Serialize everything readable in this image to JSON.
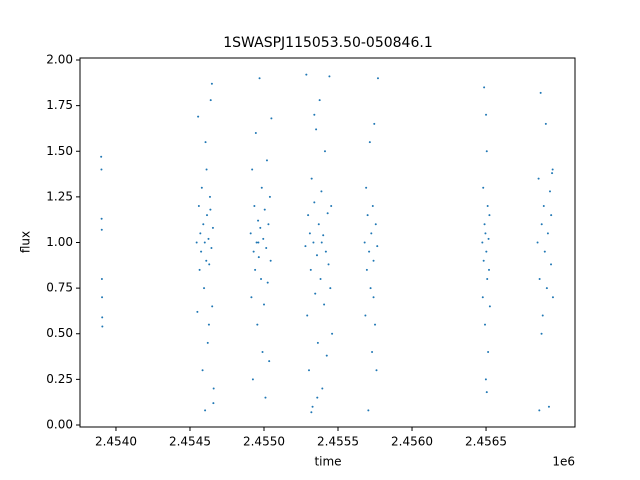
{
  "chart_data": {
    "type": "scatter",
    "title": "1SWASPJ115053.50-050846.1",
    "x_label": "time",
    "y_label": "flux",
    "x_offset_label": "1e6",
    "color": "#1f77b4",
    "xlim": [
      2453757,
      2457101
    ],
    "ylim": [
      -0.011,
      2.011
    ],
    "xticks": [
      {
        "value": 2454000,
        "label": "2.4540"
      },
      {
        "value": 2454500,
        "label": "2.4545"
      },
      {
        "value": 2455000,
        "label": "2.4550"
      },
      {
        "value": 2455500,
        "label": "2.4555"
      },
      {
        "value": 2456000,
        "label": "2.4560"
      },
      {
        "value": 2456500,
        "label": "2.4565"
      }
    ],
    "yticks": [
      {
        "value": 0,
        "label": "0.00"
      },
      {
        "value": 0.25,
        "label": "0.25"
      },
      {
        "value": 0.5,
        "label": "0.50"
      },
      {
        "value": 0.75,
        "label": "0.75"
      },
      {
        "value": 1,
        "label": "1.00"
      },
      {
        "value": 1.25,
        "label": "1.25"
      },
      {
        "value": 1.5,
        "label": "1.50"
      },
      {
        "value": 1.75,
        "label": "1.75"
      },
      {
        "value": 2,
        "label": "2.00"
      }
    ],
    "x": [
      2453900,
      2453902,
      2453903,
      2453904,
      2453905,
      2453906,
      2453907,
      2453908,
      2454545,
      2454550,
      2454555,
      2454560,
      2454565,
      2454570,
      2454575,
      2454580,
      2454585,
      2454590,
      2454595,
      2454600,
      2454605,
      2454610,
      2454615,
      2454620,
      2454625,
      2454630,
      2454635,
      2454640,
      2454645,
      2454650,
      2454655,
      2454660,
      2454648,
      2454602,
      2454658,
      2454612,
      2454628,
      2454638,
      2454910,
      2454915,
      2454920,
      2454925,
      2454930,
      2454935,
      2454940,
      2454945,
      2454950,
      2454955,
      2454960,
      2454965,
      2454970,
      2454975,
      2454980,
      2454985,
      2454990,
      2454995,
      2455000,
      2455005,
      2455010,
      2455015,
      2455020,
      2455025,
      2455030,
      2455035,
      2455040,
      2455045,
      2455050,
      2454962,
      2455280,
      2455286,
      2455292,
      2455298,
      2455304,
      2455310,
      2455316,
      2455322,
      2455328,
      2455334,
      2455340,
      2455346,
      2455352,
      2455358,
      2455364,
      2455370,
      2455376,
      2455382,
      2455388,
      2455394,
      2455400,
      2455406,
      2455412,
      2455418,
      2455424,
      2455430,
      2455436,
      2455442,
      2455448,
      2455454,
      2455460,
      2455320,
      2455340,
      2455360,
      2455390,
      2455680,
      2455685,
      2455690,
      2455695,
      2455700,
      2455705,
      2455710,
      2455715,
      2455720,
      2455725,
      2455730,
      2455735,
      2455740,
      2455745,
      2455750,
      2455755,
      2455760,
      2455765,
      2455770,
      2455740,
      2456475,
      2456478,
      2456481,
      2456484,
      2456487,
      2456490,
      2456493,
      2456496,
      2456499,
      2456502,
      2456505,
      2456508,
      2456511,
      2456514,
      2456517,
      2456520,
      2456523,
      2456526,
      2456500,
      2456505,
      2456848,
      2456855,
      2456862,
      2456869,
      2456876,
      2456883,
      2456890,
      2456897,
      2456904,
      2456911,
      2456918,
      2456925,
      2456932,
      2456939,
      2456946,
      2456952,
      2456860,
      2456875,
      2456940,
      2456950
    ],
    "values": [
      1.47,
      1.4,
      1.13,
      1.07,
      0.8,
      0.7,
      0.59,
      0.54,
      1.0,
      0.62,
      1.69,
      1.2,
      0.85,
      1.05,
      0.95,
      1.3,
      0.3,
      1.1,
      0.75,
      1.0,
      1.55,
      0.9,
      1.15,
      0.45,
      1.02,
      0.88,
      1.25,
      1.78,
      0.97,
      0.65,
      1.08,
      0.2,
      1.87,
      0.08,
      0.12,
      1.4,
      0.55,
      1.18,
      1.05,
      0.7,
      1.4,
      0.25,
      0.95,
      1.2,
      0.85,
      1.6,
      1.0,
      0.55,
      1.12,
      0.92,
      1.9,
      1.08,
      0.8,
      1.3,
      0.4,
      1.02,
      0.66,
      1.18,
      0.15,
      0.97,
      1.45,
      0.78,
      1.1,
      0.35,
      1.25,
      0.9,
      1.68,
      1.0,
      0.98,
      1.92,
      0.6,
      1.15,
      0.3,
      1.05,
      0.85,
      1.35,
      0.1,
      1.0,
      1.22,
      0.72,
      1.62,
      0.93,
      0.45,
      1.1,
      1.78,
      0.8,
      1.28,
      0.2,
      1.04,
      0.66,
      1.5,
      0.95,
      0.38,
      1.16,
      0.88,
      1.91,
      0.75,
      1.2,
      0.5,
      0.07,
      1.7,
      0.15,
      1.0,
      1.0,
      0.6,
      1.3,
      0.85,
      1.15,
      0.08,
      0.95,
      1.55,
      0.75,
      1.05,
      0.4,
      1.2,
      0.9,
      1.65,
      0.55,
      1.1,
      0.3,
      0.98,
      1.9,
      0.7,
      1.0,
      0.7,
      1.3,
      0.9,
      1.85,
      1.1,
      0.55,
      1.05,
      0.25,
      0.95,
      1.5,
      0.8,
      1.2,
      0.4,
      1.02,
      0.85,
      1.15,
      0.65,
      1.7,
      0.18,
      1.0,
      1.35,
      0.8,
      1.82,
      1.1,
      0.6,
      1.2,
      0.95,
      1.65,
      0.75,
      1.05,
      0.1,
      1.28,
      0.88,
      1.38,
      0.7,
      0.08,
      0.5,
      1.15,
      1.4
    ]
  }
}
